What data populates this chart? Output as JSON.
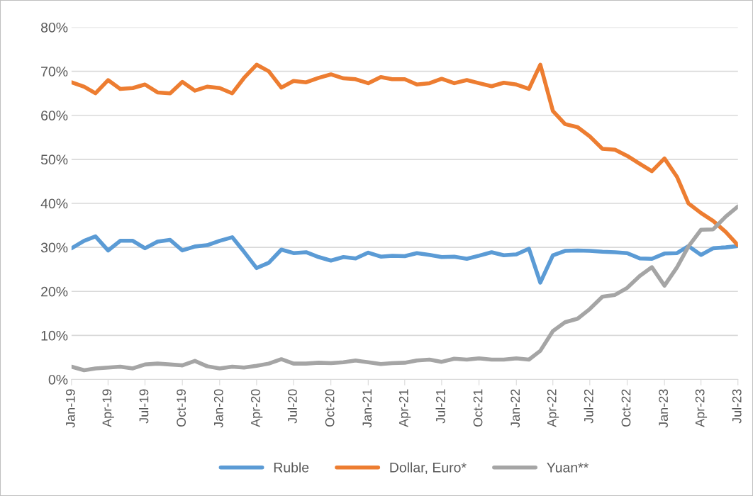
{
  "chart_data": {
    "type": "line",
    "x": [
      "2019-01",
      "2019-02",
      "2019-03",
      "2019-04",
      "2019-05",
      "2019-06",
      "2019-07",
      "2019-08",
      "2019-09",
      "2019-10",
      "2019-11",
      "2019-12",
      "2020-01",
      "2020-02",
      "2020-03",
      "2020-04",
      "2020-05",
      "2020-06",
      "2020-07",
      "2020-08",
      "2020-09",
      "2020-10",
      "2020-11",
      "2020-12",
      "2021-01",
      "2021-02",
      "2021-03",
      "2021-04",
      "2021-05",
      "2021-06",
      "2021-07",
      "2021-08",
      "2021-09",
      "2021-10",
      "2021-11",
      "2021-12",
      "2022-01",
      "2022-02",
      "2022-03",
      "2022-04",
      "2022-05",
      "2022-06",
      "2022-07",
      "2022-08",
      "2022-09",
      "2022-10",
      "2022-11",
      "2022-12",
      "2023-01",
      "2023-02",
      "2023-03",
      "2023-04",
      "2023-05",
      "2023-06",
      "2023-07"
    ],
    "series": [
      {
        "name": "Ruble",
        "color": "#5b9bd5",
        "values": [
          29.8,
          31.5,
          32.5,
          29.3,
          31.5,
          31.5,
          29.8,
          31.3,
          31.7,
          29.3,
          30.2,
          30.5,
          31.5,
          32.3,
          29,
          25.3,
          26.5,
          29.5,
          28.7,
          28.9,
          27.8,
          27,
          27.8,
          27.5,
          28.8,
          27.9,
          28.1,
          28,
          28.7,
          28.3,
          27.8,
          27.9,
          27.4,
          28.1,
          28.9,
          28.2,
          28.4,
          29.7,
          22,
          28.2,
          29.2,
          29.3,
          29.2,
          29,
          28.9,
          28.7,
          27.5,
          27.4,
          28.6,
          28.7,
          30.3,
          28.3,
          29.8,
          30,
          30.3
        ]
      },
      {
        "name": "Dollar, Euro*",
        "color": "#ed7d31",
        "values": [
          67.5,
          66.5,
          65,
          68,
          66,
          66.2,
          67,
          65.2,
          65,
          67.6,
          65.6,
          66.5,
          66.2,
          65,
          68.5,
          71.5,
          70,
          66.3,
          67.8,
          67.5,
          68.5,
          69.3,
          68.4,
          68.2,
          67.3,
          68.7,
          68.2,
          68.2,
          67,
          67.3,
          68.3,
          67.3,
          68,
          67.3,
          66.6,
          67.4,
          67,
          66,
          71.5,
          61,
          58,
          57.3,
          55.2,
          52.4,
          52.2,
          50.8,
          49,
          47.3,
          50.2,
          46,
          40,
          37.8,
          36,
          33.5,
          30.5
        ]
      },
      {
        "name": "Yuan**",
        "color": "#a5a5a5",
        "values": [
          2.9,
          2.1,
          2.5,
          2.7,
          2.9,
          2.5,
          3.4,
          3.6,
          3.4,
          3.2,
          4.2,
          3,
          2.5,
          2.9,
          2.7,
          3.1,
          3.6,
          4.6,
          3.6,
          3.6,
          3.8,
          3.7,
          3.9,
          4.3,
          3.9,
          3.5,
          3.7,
          3.8,
          4.3,
          4.5,
          4,
          4.7,
          4.5,
          4.8,
          4.5,
          4.5,
          4.8,
          4.5,
          6.5,
          11,
          13,
          13.8,
          16,
          18.8,
          19.2,
          20.8,
          23.5,
          25.5,
          21.3,
          25.5,
          30.2,
          34,
          34.1,
          37,
          39.3
        ]
      }
    ],
    "xlim": [
      "2019-01",
      "2023-07"
    ],
    "xticks": [
      {
        "value": "2019-01",
        "label": "Jan-19"
      },
      {
        "value": "2019-04",
        "label": "Apr-19"
      },
      {
        "value": "2019-07",
        "label": "Jul-19"
      },
      {
        "value": "2019-10",
        "label": "Oct-19"
      },
      {
        "value": "2020-01",
        "label": "Jan-20"
      },
      {
        "value": "2020-04",
        "label": "Apr-20"
      },
      {
        "value": "2020-07",
        "label": "Jul-20"
      },
      {
        "value": "2020-10",
        "label": "Oct-20"
      },
      {
        "value": "2021-01",
        "label": "Jan-21"
      },
      {
        "value": "2021-04",
        "label": "Apr-21"
      },
      {
        "value": "2021-07",
        "label": "Jul-21"
      },
      {
        "value": "2021-10",
        "label": "Oct-21"
      },
      {
        "value": "2022-01",
        "label": "Jan-22"
      },
      {
        "value": "2022-04",
        "label": "Apr-22"
      },
      {
        "value": "2022-07",
        "label": "Jul-22"
      },
      {
        "value": "2022-10",
        "label": "Oct-22"
      },
      {
        "value": "2023-01",
        "label": "Jan-23"
      },
      {
        "value": "2023-04",
        "label": "Apr-23"
      },
      {
        "value": "2023-07",
        "label": "Jul-23"
      }
    ],
    "ylim": [
      0,
      80
    ],
    "yticks": [
      {
        "value": 0,
        "label": "0%"
      },
      {
        "value": 10,
        "label": "10%"
      },
      {
        "value": 20,
        "label": "20%"
      },
      {
        "value": 30,
        "label": "30%"
      },
      {
        "value": 40,
        "label": "40%"
      },
      {
        "value": 50,
        "label": "50%"
      },
      {
        "value": 60,
        "label": "60%"
      },
      {
        "value": 70,
        "label": "70%"
      },
      {
        "value": 80,
        "label": "80%"
      }
    ],
    "grid": "y",
    "legend": "bottom",
    "marker": "none",
    "line_style": "solid"
  }
}
